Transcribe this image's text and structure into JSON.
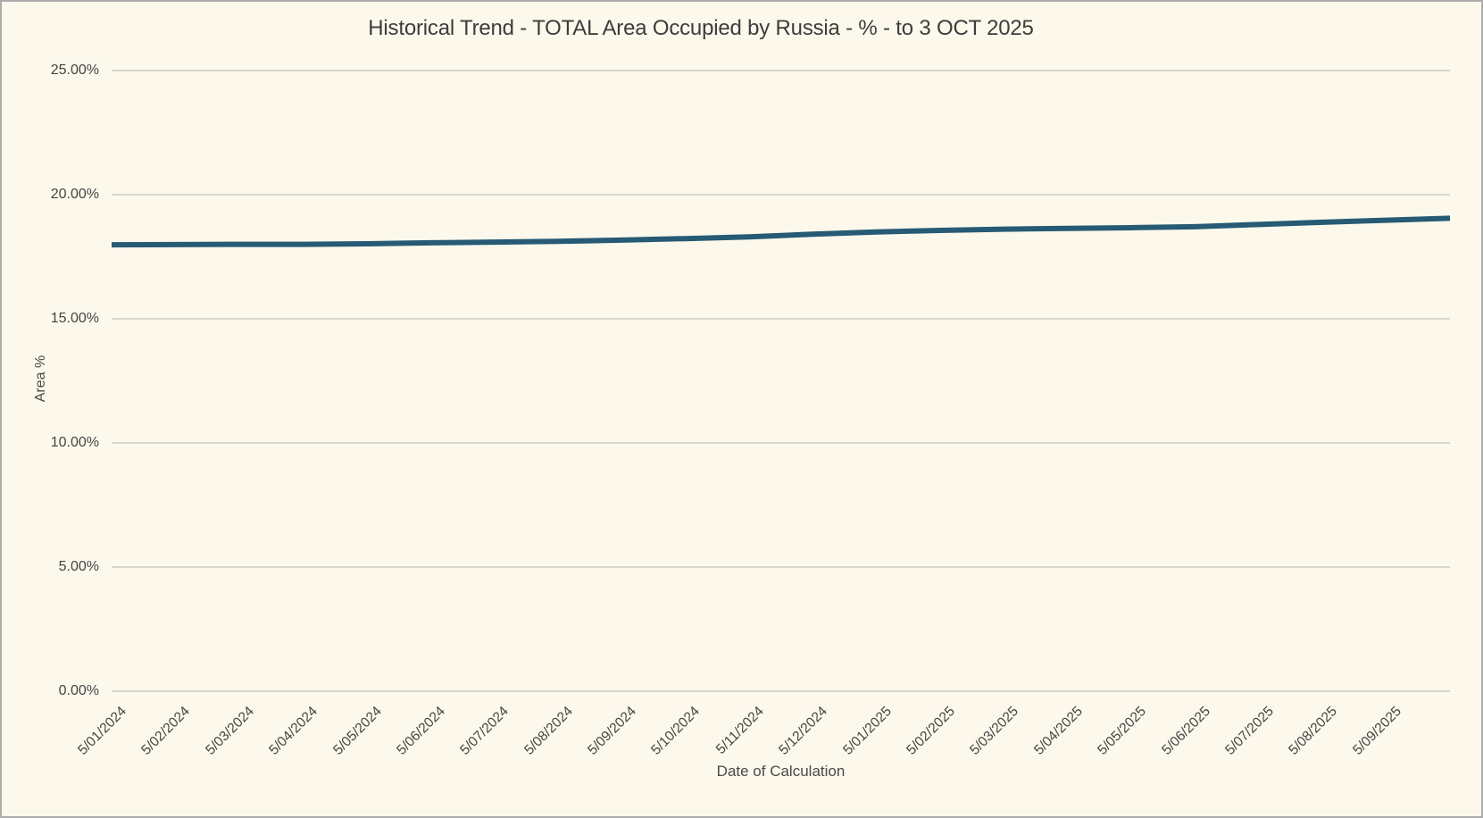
{
  "chart": {
    "title": "Historical Trend - TOTAL Area Occupied by Russia - % - to 3 OCT 2025",
    "x_axis_title": "Date of Calculation",
    "y_axis_title": "Area %"
  },
  "colors": {
    "background": "#fdf8ec",
    "gridline": "#d8d6cf",
    "line": "#265a75",
    "text": "#404040",
    "border": "#acacac"
  },
  "chart_data": {
    "type": "line",
    "title": "Historical Trend - TOTAL Area Occupied by Russia - % - to 3 OCT 2025",
    "xlabel": "Date of Calculation",
    "ylabel": "Area %",
    "ylim": [
      0,
      25
    ],
    "yticks": [
      0,
      5,
      10,
      15,
      20,
      25
    ],
    "ytick_labels": [
      "0.00%",
      "5.00%",
      "10.00%",
      "15.00%",
      "20.00%",
      "25.00%"
    ],
    "grid": true,
    "legend_position": "none",
    "categories": [
      "5/01/2024",
      "5/02/2024",
      "5/03/2024",
      "5/04/2024",
      "5/05/2024",
      "5/06/2024",
      "5/07/2024",
      "5/08/2024",
      "5/09/2024",
      "5/10/2024",
      "5/11/2024",
      "5/12/2024",
      "5/01/2025",
      "5/02/2025",
      "5/03/2025",
      "5/04/2025",
      "5/05/2025",
      "5/06/2025",
      "5/07/2025",
      "5/08/2025",
      "5/09/2025"
    ],
    "series": [
      {
        "name": "TOTAL Area Occupied by Russia - %",
        "values": [
          17.98,
          17.99,
          18.0,
          18.0,
          18.02,
          18.06,
          18.09,
          18.12,
          18.17,
          18.23,
          18.3,
          18.41,
          18.5,
          18.56,
          18.61,
          18.64,
          18.67,
          18.71,
          18.8,
          18.89,
          18.97
        ],
        "end_point": {
          "label": "3 OCT 2025",
          "value": 19.05
        }
      }
    ]
  }
}
